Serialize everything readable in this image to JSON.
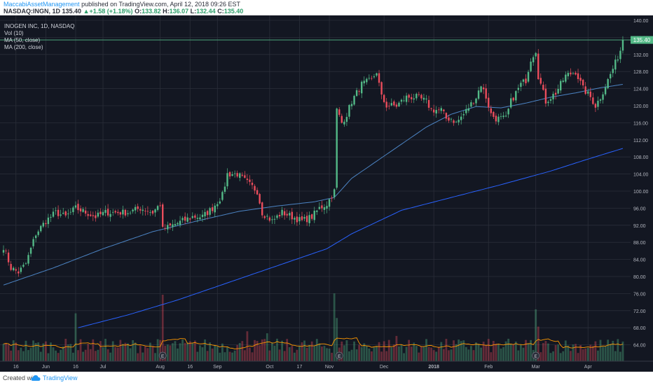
{
  "header": {
    "author": "MaccabiAssetManagement",
    "published_text": " published on TradingView.com, April 12, 2018 09:26 EST",
    "symbol": "NASDAQ:INGN, 1D",
    "price": "135.40",
    "change": "+1.58 (+1.18%)",
    "open_label": "O:",
    "open": "133.82",
    "high_label": "H:",
    "high": "136.07",
    "low_label": "L:",
    "low": "132.44",
    "close_label": "C:",
    "close": "135.40"
  },
  "legend": {
    "title": "INOGEN INC, 1D, NASDAQ",
    "vol": "Vol (10)",
    "ma50": "MA (50, close)",
    "ma200": "MA (200, close)"
  },
  "last_price_label": "135.40",
  "footer": {
    "created_with": "Created with",
    "brand": "TradingView"
  },
  "colors": {
    "background": "#131722",
    "grid": "#2a2e39",
    "up": "#53b987",
    "down": "#eb4d5c",
    "ma50": "#3d7ab8",
    "ma200": "#2962ff",
    "vol_ma": "#ff9800",
    "axis_text": "#b2b5be"
  },
  "chart_data": {
    "type": "candlestick",
    "ylim": [
      62,
      140
    ],
    "y_ticks": [
      "140.00",
      "136.00",
      "132.00",
      "128.00",
      "124.00",
      "120.00",
      "116.00",
      "112.00",
      "108.00",
      "104.00",
      "100.00",
      "96.00",
      "92.00",
      "88.00",
      "84.00",
      "80.00",
      "76.00",
      "72.00",
      "68.00",
      "64.00"
    ],
    "x_ticks": [
      {
        "label": "16",
        "i": 5
      },
      {
        "label": "Jun",
        "i": 17
      },
      {
        "label": "16",
        "i": 29
      },
      {
        "label": "Jul",
        "i": 40
      },
      {
        "label": "Aug",
        "i": 63
      },
      {
        "label": "16",
        "i": 75
      },
      {
        "label": "Sep",
        "i": 86
      },
      {
        "label": "Oct",
        "i": 107
      },
      {
        "label": "17",
        "i": 119
      },
      {
        "label": "Nov",
        "i": 131
      },
      {
        "label": "Dec",
        "i": 153
      },
      {
        "label": "2018",
        "i": 173
      },
      {
        "label": "Feb",
        "i": 195
      },
      {
        "label": "Mar",
        "i": 214
      },
      {
        "label": "Apr",
        "i": 235
      }
    ],
    "earnings_markers": [
      {
        "label": "E",
        "i": 64
      },
      {
        "label": "E",
        "i": 135
      },
      {
        "label": "E",
        "i": 214
      }
    ],
    "anchors": [
      [
        0,
        87
      ],
      [
        3,
        82
      ],
      [
        6,
        81
      ],
      [
        9,
        83
      ],
      [
        13,
        90
      ],
      [
        17,
        93
      ],
      [
        21,
        95
      ],
      [
        25,
        94
      ],
      [
        29,
        96
      ],
      [
        33,
        95
      ],
      [
        37,
        94
      ],
      [
        41,
        95
      ],
      [
        45,
        95
      ],
      [
        50,
        95
      ],
      [
        55,
        96
      ],
      [
        60,
        95
      ],
      [
        63,
        97
      ],
      [
        64,
        91
      ],
      [
        68,
        92
      ],
      [
        72,
        93
      ],
      [
        76,
        94
      ],
      [
        80,
        94
      ],
      [
        84,
        96
      ],
      [
        88,
        99
      ],
      [
        90,
        104
      ],
      [
        94,
        104
      ],
      [
        98,
        102
      ],
      [
        102,
        100
      ],
      [
        104,
        95
      ],
      [
        108,
        93
      ],
      [
        112,
        95
      ],
      [
        116,
        94
      ],
      [
        120,
        93
      ],
      [
        124,
        94
      ],
      [
        127,
        96
      ],
      [
        130,
        97
      ],
      [
        132,
        99
      ],
      [
        133,
        100
      ],
      [
        134,
        119
      ],
      [
        136,
        116
      ],
      [
        138,
        118
      ],
      [
        140,
        121
      ],
      [
        144,
        125
      ],
      [
        148,
        126
      ],
      [
        150,
        128
      ],
      [
        152,
        122
      ],
      [
        154,
        120
      ],
      [
        158,
        120
      ],
      [
        162,
        122
      ],
      [
        166,
        122
      ],
      [
        170,
        121
      ],
      [
        172,
        119
      ],
      [
        176,
        119
      ],
      [
        178,
        117
      ],
      [
        180,
        117
      ],
      [
        182,
        116
      ],
      [
        185,
        118
      ],
      [
        190,
        122
      ],
      [
        192,
        125
      ],
      [
        194,
        122
      ],
      [
        196,
        118
      ],
      [
        198,
        117
      ],
      [
        202,
        117
      ],
      [
        204,
        121
      ],
      [
        208,
        125
      ],
      [
        210,
        126
      ],
      [
        212,
        131
      ],
      [
        214,
        133
      ],
      [
        215,
        127
      ],
      [
        217,
        123
      ],
      [
        218,
        121
      ],
      [
        222,
        123
      ],
      [
        226,
        127
      ],
      [
        230,
        128
      ],
      [
        233,
        124
      ],
      [
        236,
        122
      ],
      [
        238,
        120
      ],
      [
        240,
        122
      ],
      [
        243,
        126
      ],
      [
        246,
        130
      ],
      [
        248,
        133
      ],
      [
        249,
        135.4
      ]
    ],
    "series": [
      {
        "name": "MA (50, close)",
        "start": 0,
        "anchors": [
          [
            0,
            78
          ],
          [
            20,
            82
          ],
          [
            40,
            86.5
          ],
          [
            60,
            90.5
          ],
          [
            80,
            93.3
          ],
          [
            95,
            95.3
          ],
          [
            110,
            96.5
          ],
          [
            125,
            97.5
          ],
          [
            133,
            98.5
          ],
          [
            140,
            103
          ],
          [
            150,
            107
          ],
          [
            160,
            111
          ],
          [
            170,
            115
          ],
          [
            180,
            118
          ],
          [
            190,
            119.8
          ],
          [
            200,
            119.5
          ],
          [
            210,
            120.6
          ],
          [
            220,
            122
          ],
          [
            230,
            123
          ],
          [
            240,
            124.2
          ],
          [
            249,
            125
          ]
        ]
      },
      {
        "name": "MA (200, close)",
        "start": 30,
        "anchors": [
          [
            30,
            68
          ],
          [
            50,
            71
          ],
          [
            70,
            74.5
          ],
          [
            90,
            78.5
          ],
          [
            110,
            82.5
          ],
          [
            130,
            86.5
          ],
          [
            140,
            90
          ],
          [
            160,
            95.5
          ],
          [
            180,
            98.5
          ],
          [
            200,
            101.5
          ],
          [
            220,
            104.7
          ],
          [
            235,
            107.5
          ],
          [
            249,
            110
          ]
        ]
      }
    ]
  }
}
